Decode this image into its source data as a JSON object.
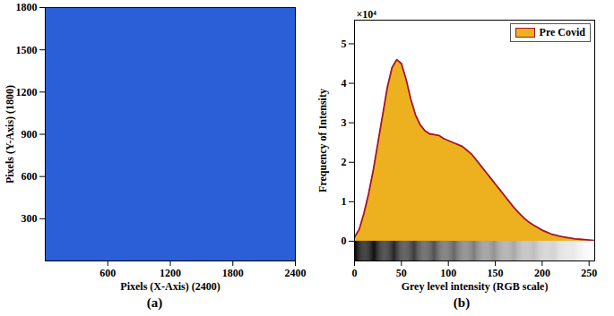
{
  "chart_data": [
    {
      "type": "image",
      "caption": "(a)",
      "x_label": "Pixels (X-Axis) (2400)",
      "y_label": "Pixels (Y-Axis) (1800)",
      "xlim": [
        0,
        2400
      ],
      "ylim": [
        0,
        1800
      ],
      "xticks": [
        600,
        1200,
        1800,
        2400
      ],
      "yticks": [
        300,
        600,
        900,
        1200,
        1500,
        1800
      ]
    },
    {
      "type": "area",
      "caption": "(b)",
      "x_label": "Grey level intensity (RGB scale)",
      "y_label": "Frequency of Intensity",
      "annotations": [
        "×10⁴"
      ],
      "x": [
        0,
        5,
        10,
        15,
        20,
        25,
        30,
        35,
        40,
        45,
        50,
        55,
        60,
        65,
        70,
        75,
        80,
        85,
        90,
        95,
        100,
        105,
        110,
        115,
        120,
        125,
        130,
        135,
        140,
        145,
        150,
        155,
        160,
        165,
        170,
        175,
        180,
        185,
        190,
        195,
        200,
        205,
        210,
        215,
        220,
        225,
        230,
        235,
        240,
        245,
        250,
        255
      ],
      "series": [
        {
          "name": "Pre Covid",
          "color": "#edb120",
          "values": [
            0.1,
            0.3,
            0.7,
            1.2,
            1.8,
            2.5,
            3.2,
            3.9,
            4.4,
            4.6,
            4.5,
            4.1,
            3.6,
            3.2,
            2.95,
            2.8,
            2.72,
            2.7,
            2.68,
            2.6,
            2.55,
            2.5,
            2.45,
            2.4,
            2.3,
            2.2,
            2.05,
            1.9,
            1.75,
            1.6,
            1.45,
            1.3,
            1.15,
            1.0,
            0.85,
            0.72,
            0.6,
            0.5,
            0.42,
            0.35,
            0.28,
            0.23,
            0.18,
            0.15,
            0.12,
            0.1,
            0.08,
            0.06,
            0.05,
            0.04,
            0.03,
            0.02
          ]
        }
      ],
      "xlim": [
        0,
        256
      ],
      "ylim": [
        -0.5,
        5.6
      ],
      "xticks": [
        0,
        50,
        100,
        150,
        200,
        250
      ],
      "yticks": [
        0,
        1,
        2,
        3,
        4,
        5
      ],
      "legend": "top-right"
    }
  ]
}
